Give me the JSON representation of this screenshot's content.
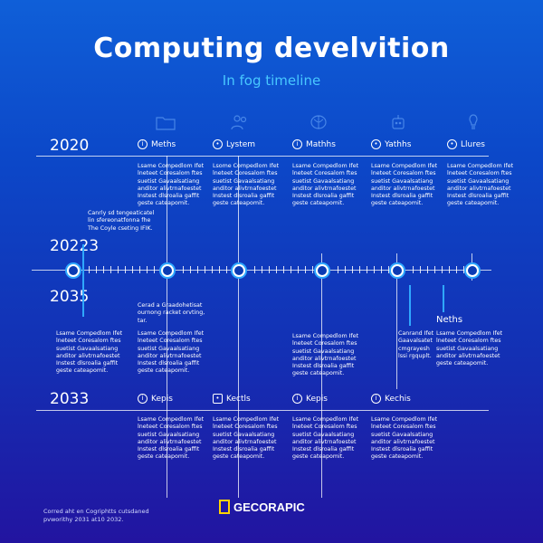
{
  "title": "Computing develvition",
  "subtitle": "In fog timeline",
  "years": [
    "2020",
    "20223",
    "2035",
    "2033"
  ],
  "row1": [
    {
      "icon": "circle-icon",
      "label": "Meths",
      "text": "Lsame Compedlom Ifet\nlneteet Coresalom ftes\nsuetist Gavaalsatiang\nanditor alivtrnafoestet\nInstest dlsroalia gaffit\ngeste cateapomit."
    },
    {
      "icon": "circle-icon",
      "label": "Lystem",
      "text": "Lsome Compedlom Ifet\nlneteet Coresalom ftes\nsuetist Gavaalsatiang\nanditor alivtrnafoestet\nInstest dlsroalia gaffit\ngeste cateapomit."
    },
    {
      "icon": "circle-icon",
      "label": "Mathhs",
      "text": "Lsame Compedlom Ifet\nlneteet Coresalom ftes\nsuetist Gavaalsatiang\nanditor alivtrnafoestet\nInstest dlsroalia gaffit\ngeste cateapomit."
    },
    {
      "icon": "circle-icon",
      "label": "Yathhs",
      "text": "Lsame Compedlom Ifet\nlneteet Coresalom ftes\nsuetist Gavaalsatiang\nanditor alivtrnafoestet\nInstest dlsroalia gaffit\ngeste cateapomit."
    },
    {
      "icon": "circle-icon",
      "label": "Llures",
      "text": "Lsame Compedlom Ifet\nlneteet Coresalom ftes\nsuetist Gavaalsatiang\nanditor alivtrnafoestet\nInstest dlsroalia gaffit\ngeste cateapomit."
    }
  ],
  "side_note_top": "Canrly sd tengeaticatel\nlin sfereonatfonna fhe\nThe Coyle cseting IFIK.",
  "side_note_mid": "Cerad a Graadohetisat\nournong racket orvting,\ntar.",
  "row2": [
    "Lsame Compedlom Ifet\nlneteet Coresalom ftes\nsuetist Gavaalsatiang\nanditor alivtrnafoestet\nInstest dlsroalia gaffit\ngeste cateapomit.",
    "Lsame Compedlom Ifet\nlneteet Coresalom ftes\nsuetist Gavaalsatiang\nanditor alivtrnafoestet\nInstest dlsroalia gaffit\ngeste cateapomit.",
    "Lsame Compedlom Ifet\nlneteet Coresalom ftes\nsuetist Gavaalsatiang\nanditor alivtrnafoestet\nInstest dlsroalia gaffit\ngeste cateapomit.",
    "Canrand Ifet\nGaavalsatet\ncmgrayesh\nlssi rgquplt.",
    "Lsame Compedlom Ifet\nlneteet Coresalom ftes\nsuetist Gavaalsatiang\nanditor alivtrnafoestet\ngeste cateapomit."
  ],
  "neths_label": "Neths",
  "row3": [
    {
      "icon": "circle-icon",
      "label": "Kepis",
      "text": "Lsame Compedlom Ifet\nlneteet Coresalom ftes\nsuetist Gavaalsatiang\nanditor alivtrnafoestet\nInstest dlsroalia gaffit\ngeste cateapomit."
    },
    {
      "icon": "square-icon",
      "label": "Kectls",
      "text": "Lsame Compedlom Ifet\nlneteet Coresalom ftes\nsuetist Gavaalsatiang\nanditor alivtrnafoestet\nInstest dlsroalia gaffit\ngeste cateapomit."
    },
    {
      "icon": "circle-icon",
      "label": "Kepis",
      "text": "Lsame Compedlom Ifet\nlneteet Coresalom ftes\nsuetist Gavaalsatiang\nanditor alivtrnafoestet\nInstest dlsroalia gaffit\ngeste cateapomit."
    },
    {
      "icon": "circle-icon",
      "label": "Kechis",
      "text": "Lsame Compedlom Ifet\nlneteet Coresalom ftes\nsuetist Gavaalsatiang\nanditor alivtrnafoestet\nInstest dlsroalia gaffit\ngeste cateapomit."
    }
  ],
  "footer_note": "Corred aht en Cogriphtts cutsdaned\npvworithy 2031 at10 2032.",
  "brand": "GECORAPIC",
  "colors": {
    "accent": "#2fa8ff",
    "brand_yellow": "#ffd400",
    "bg_top": "#0f5fd8",
    "bg_bottom": "#2214a0"
  }
}
